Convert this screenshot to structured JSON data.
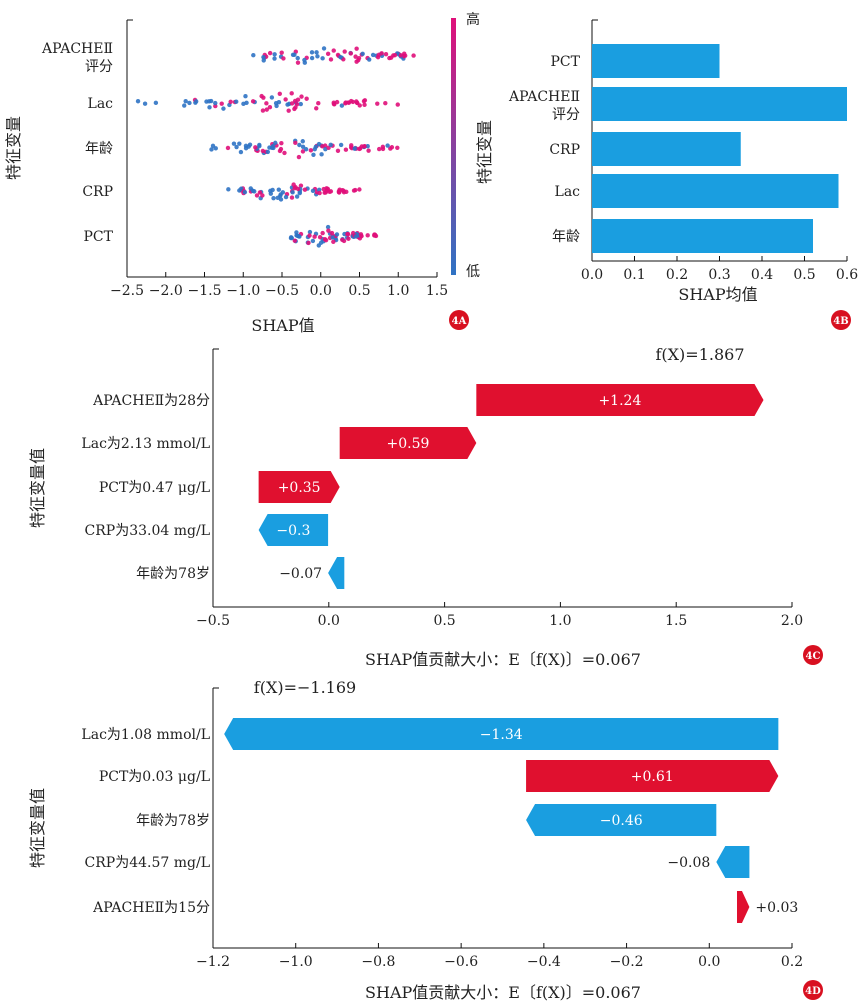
{
  "colors": {
    "red": "#e0102f",
    "blue": "#1a9ee0",
    "dot_high": "#e0107a",
    "dot_low": "#2f73c4",
    "badge": "#d81020"
  },
  "chart_data": [
    {
      "id": "4A",
      "type": "scatter",
      "subtype": "shap-beeswarm",
      "badge": "4A",
      "xlabel": "SHAP值",
      "ylabel": "特征变量",
      "xlim": [
        -2.5,
        1.5
      ],
      "xticks": [
        -2.5,
        -2.0,
        -1.5,
        -1.0,
        -0.5,
        0.0,
        0.5,
        1.0,
        1.5
      ],
      "xtick_labels": [
        "−2.5",
        "−2.0",
        "−1.5",
        "−1.0",
        "−0.5",
        "0.0",
        "0.5",
        "1.0",
        "1.5"
      ],
      "features": [
        "APACHEⅡ\n评分",
        "Lac",
        "年龄",
        "CRP",
        "PCT"
      ],
      "colorbar": {
        "high": "高",
        "low": "低"
      },
      "spread": [
        {
          "feature": "APACHEⅡ评分",
          "min": -1.15,
          "max": 1.5
        },
        {
          "feature": "Lac",
          "min": -2.4,
          "max": 1.1
        },
        {
          "feature": "年龄",
          "min": -1.5,
          "max": 1.0
        },
        {
          "feature": "CRP",
          "min": -1.35,
          "max": 0.6
        },
        {
          "feature": "PCT",
          "min": -0.6,
          "max": 0.75
        }
      ]
    },
    {
      "id": "4B",
      "type": "bar",
      "orientation": "horizontal",
      "badge": "4B",
      "xlabel": "SHAP均值",
      "ylabel": "特征变量",
      "xlim": [
        0.0,
        0.6
      ],
      "xticks": [
        0.0,
        0.1,
        0.2,
        0.3,
        0.4,
        0.5,
        0.6
      ],
      "xtick_labels": [
        "0.0",
        "0.1",
        "0.2",
        "0.3",
        "0.4",
        "0.5",
        "0.6"
      ],
      "categories": [
        "PCT",
        "APACHEⅡ\n评分",
        "CRP",
        "Lac",
        "年龄"
      ],
      "values": [
        0.3,
        0.6,
        0.35,
        0.58,
        0.52
      ]
    },
    {
      "id": "4C",
      "type": "bar",
      "subtype": "shap-waterfall",
      "badge": "4C",
      "xlabel": "SHAP值贡献大小：E〔f(X)〕=0.067",
      "ylabel": "特征变量值",
      "fx_label": "f(X)=1.867",
      "xlim": [
        -0.5,
        2.0
      ],
      "xticks": [
        -0.5,
        0.0,
        0.5,
        1.0,
        1.5,
        2.0
      ],
      "xtick_labels": [
        "−0.5",
        "0.0",
        "0.5",
        "1.0",
        "1.5",
        "2.0"
      ],
      "categories": [
        "APACHEⅡ为28分",
        "Lac为2.13 mmol/L",
        "PCT为0.47 μg/L",
        "CRP为33.04 mg/L",
        "年龄为78岁"
      ],
      "values": [
        1.24,
        0.59,
        0.35,
        -0.3,
        -0.07
      ],
      "value_labels": [
        "+1.24",
        "+0.59",
        "+0.35",
        "−0.3",
        "−0.07"
      ],
      "base_value": 0.067,
      "final_value": 1.867
    },
    {
      "id": "4D",
      "type": "bar",
      "subtype": "shap-waterfall",
      "badge": "4D",
      "xlabel": "SHAP值贡献大小：E〔f(X)〕=0.067",
      "ylabel": "特征变量值",
      "fx_label": "f(X)=−1.169",
      "xlim": [
        -1.2,
        0.2
      ],
      "xticks": [
        -1.2,
        -1.0,
        -0.8,
        -0.6,
        -0.4,
        -0.2,
        0.0,
        0.2
      ],
      "xtick_labels": [
        "−1.2",
        "−1.0",
        "−0.8",
        "−0.6",
        "−0.4",
        "−0.2",
        "0.0",
        "0.2"
      ],
      "categories": [
        "Lac为1.08 mmol/L",
        "PCT为0.03 μg/L",
        "年龄为78岁",
        "CRP为44.57 mg/L",
        "APACHEⅡ为15分"
      ],
      "values": [
        -1.34,
        0.61,
        -0.46,
        -0.08,
        0.03
      ],
      "value_labels": [
        "−1.34",
        "+0.61",
        "−0.46",
        "−0.08",
        "+0.03"
      ],
      "base_value": 0.067,
      "final_value": -1.169
    }
  ]
}
